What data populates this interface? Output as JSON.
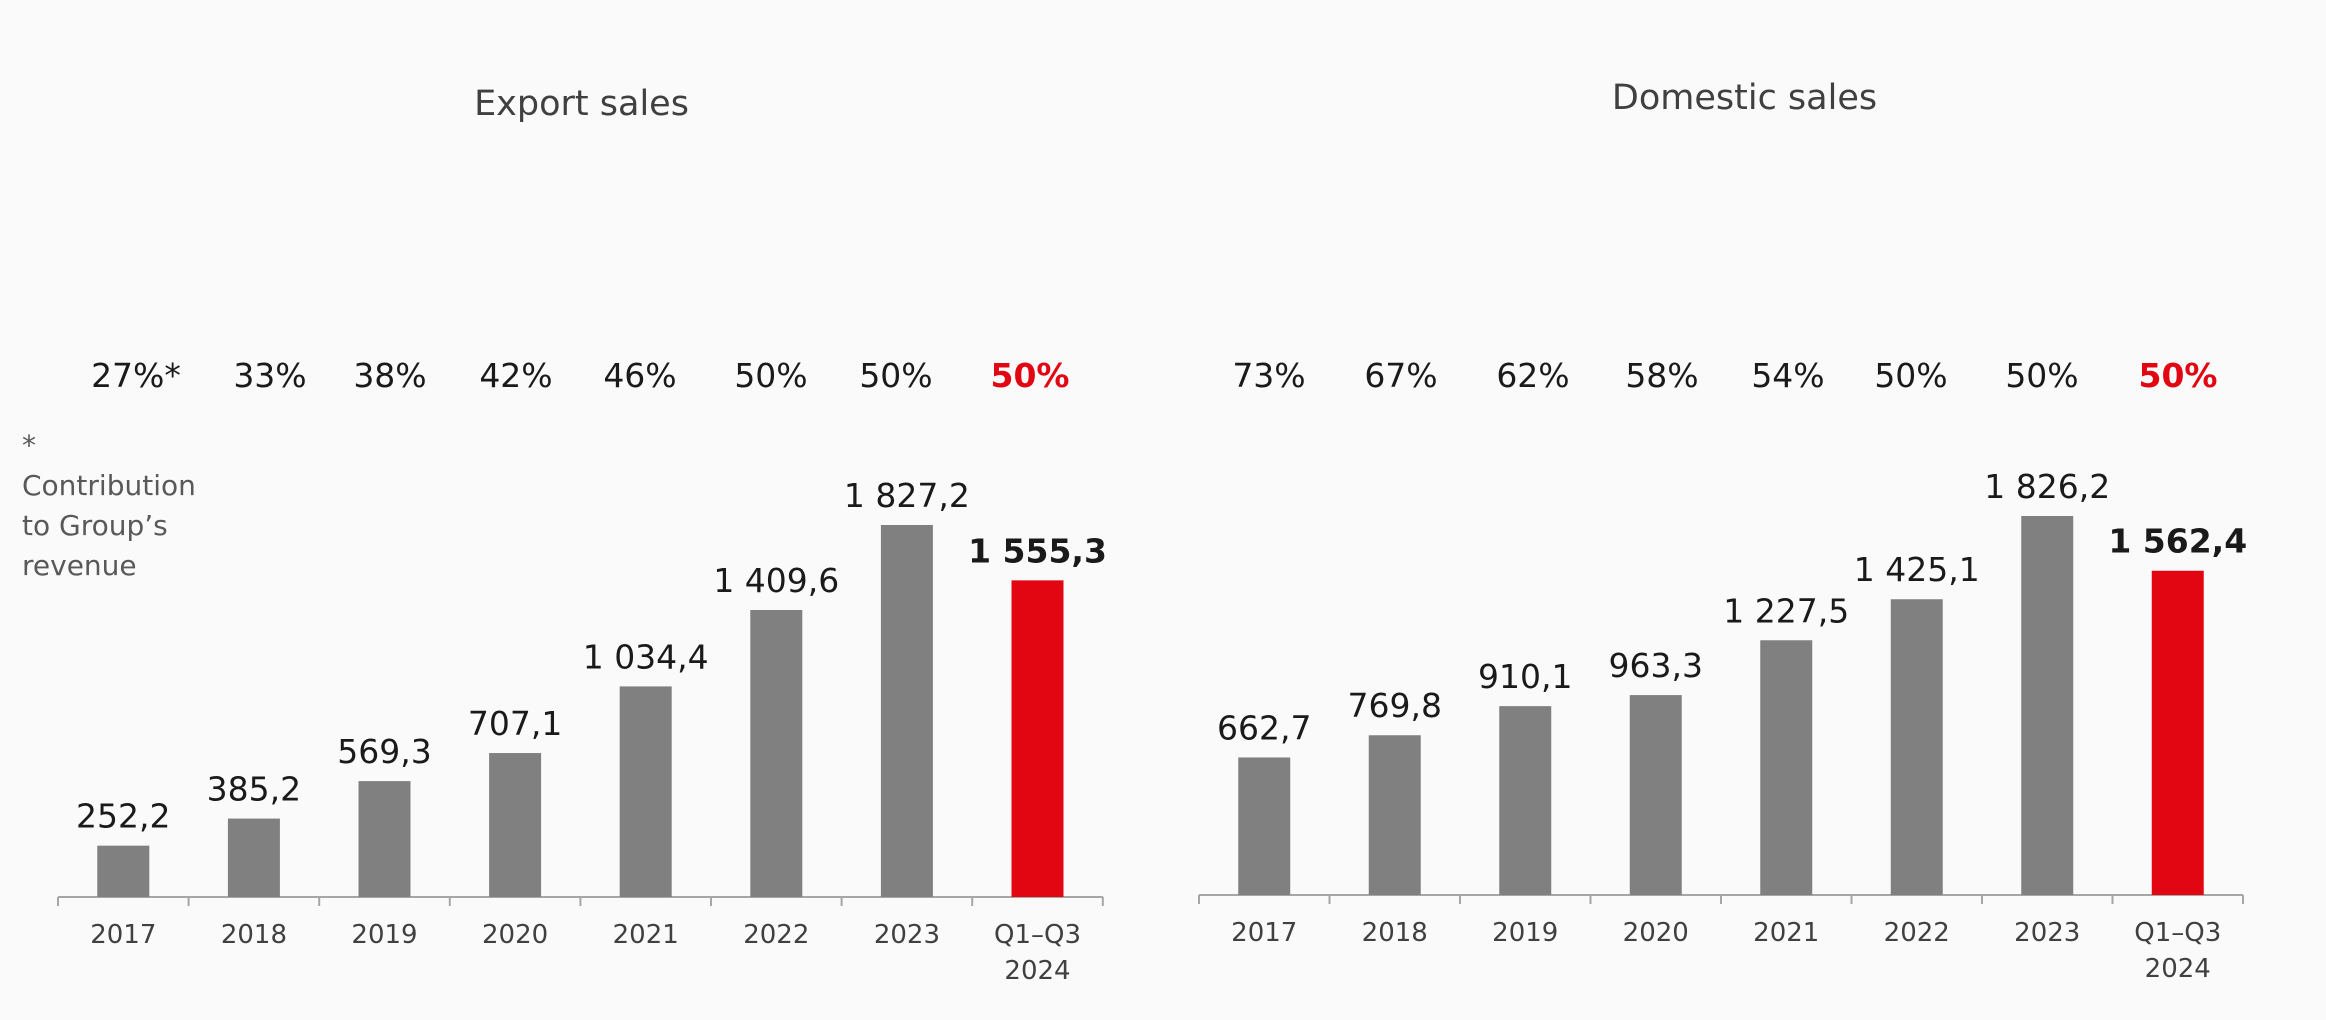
{
  "colors": {
    "bar_default": "#808080",
    "bar_highlight": "#e20613",
    "axis": "#a6a6a6",
    "label_text": "#1a1a1a",
    "highlight_text": "#e20613",
    "tick_text": "#404040"
  },
  "footnote": {
    "marker": "*",
    "text": "Contribution to Group’s revenue"
  },
  "chart_data": [
    {
      "type": "bar",
      "title": "Export sales",
      "categories": [
        "2017",
        "2018",
        "2019",
        "2020",
        "2021",
        "2022",
        "2023",
        "Q1–Q3 2024"
      ],
      "values": [
        252.2,
        385.2,
        569.3,
        707.1,
        1034.4,
        1409.6,
        1827.2,
        1555.3
      ],
      "value_labels": [
        "252,2",
        "385,2",
        "569,3",
        "707,1",
        "1 034,4",
        "1 409,6",
        "1 827,2",
        "1 555,3"
      ],
      "shares": [
        "27%*",
        "33%",
        "38%",
        "42%",
        "46%",
        "50%",
        "50%",
        "50%"
      ],
      "highlight_index": 7,
      "xlabel": "",
      "ylabel": "",
      "ylim": [
        0,
        1900
      ],
      "grid": false,
      "legend": "none"
    },
    {
      "type": "bar",
      "title": "Domestic sales",
      "categories": [
        "2017",
        "2018",
        "2019",
        "2020",
        "2021",
        "2022",
        "2023",
        "Q1–Q3 2024"
      ],
      "values": [
        662.7,
        769.8,
        910.1,
        963.3,
        1227.5,
        1425.1,
        1826.2,
        1562.4
      ],
      "value_labels": [
        "662,7",
        "769,8",
        "910,1",
        "963,3",
        "1 227,5",
        "1 425,1",
        "1 826,2",
        "1 562,4"
      ],
      "shares": [
        "73%",
        "67%",
        "62%",
        "58%",
        "54%",
        "50%",
        "50%",
        "50%"
      ],
      "highlight_index": 7,
      "xlabel": "",
      "ylabel": "",
      "ylim": [
        0,
        1900
      ],
      "grid": false,
      "legend": "none"
    }
  ]
}
